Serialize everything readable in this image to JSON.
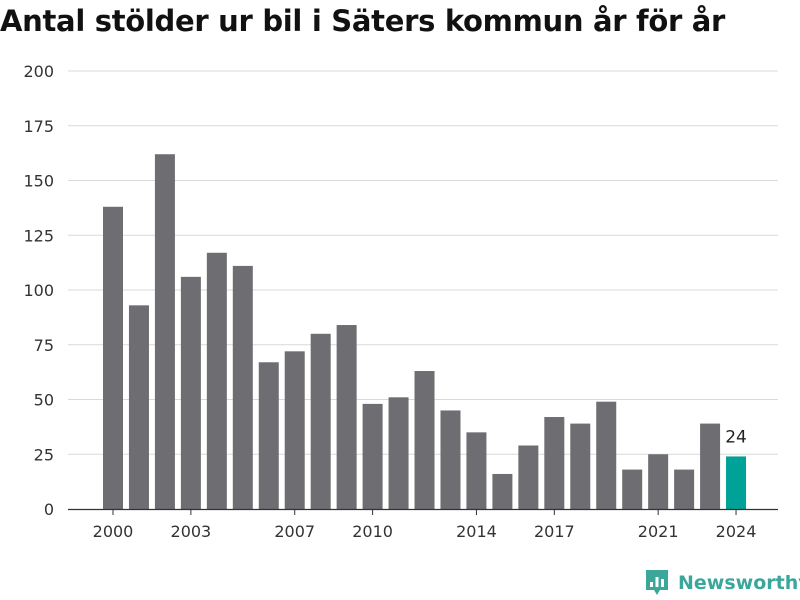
{
  "title": "Antal stölder ur bil i Säters kommun år för år",
  "brand": {
    "name": "Newsworthy",
    "icon": "bar-chart-logo-icon",
    "color": "#3aa79a"
  },
  "colors": {
    "bar": "#6e6d72",
    "highlight": "#00a196",
    "grid": "#d9d9d9",
    "text": "#333333"
  },
  "chart_data": {
    "type": "bar",
    "title": "Antal stölder ur bil i Säters kommun år för år",
    "xlabel": "",
    "ylabel": "",
    "categories": [
      "2000",
      "2001",
      "2002",
      "2003",
      "2004",
      "2005",
      "2006",
      "2007",
      "2008",
      "2009",
      "2010",
      "2011",
      "2012",
      "2013",
      "2014",
      "2015",
      "2016",
      "2017",
      "2018",
      "2019",
      "2020",
      "2021",
      "2022",
      "2023",
      "2024"
    ],
    "values": [
      138,
      93,
      162,
      106,
      117,
      111,
      67,
      72,
      80,
      84,
      48,
      51,
      63,
      45,
      35,
      16,
      29,
      42,
      39,
      49,
      18,
      25,
      18,
      39,
      24
    ],
    "x_tick_labels": [
      "2000",
      "2003",
      "2007",
      "2010",
      "2014",
      "2017",
      "2021",
      "2024"
    ],
    "y_ticks": [
      0,
      25,
      50,
      75,
      100,
      125,
      150,
      175,
      200
    ],
    "ylim": [
      0,
      200
    ],
    "grid": true,
    "highlight": {
      "category": "2024",
      "label": "24"
    }
  }
}
